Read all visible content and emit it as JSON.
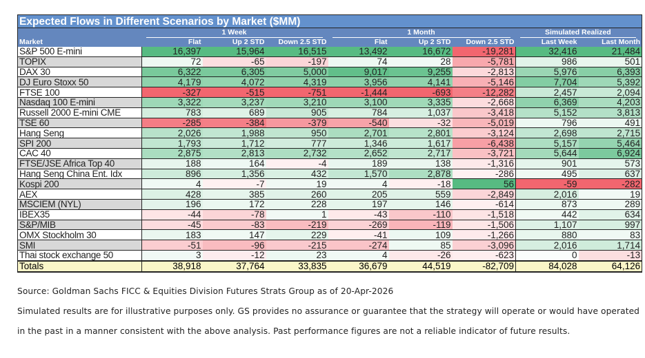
{
  "title": "Expected Flows in Different Scenarios by Market ($MM)",
  "groups": {
    "week": "1 Week",
    "month": "1 Month",
    "realized": "Simulated Realized"
  },
  "columns": [
    "Market",
    "Flat",
    "Up 2 STD",
    "Down 2.5 STD",
    "Flat",
    "Up 2 STD",
    "Down 2.5 STD",
    "Last Week",
    "Last Month"
  ],
  "colors": {
    "title_bg": "#6391cd",
    "header_bg": "#6487be",
    "positive": "#57bb82",
    "negative": "#f2666f",
    "totals_bg": "#faf6c8",
    "zebra": "#d8d8d8"
  },
  "rows": [
    [
      "S&P 500 E-mini",
      "16,397",
      "15,964",
      "16,515",
      "13,492",
      "16,672",
      "-19,281",
      "32,416",
      "21,484"
    ],
    [
      "TOPIX",
      "72",
      "-65",
      "-197",
      "74",
      "28",
      "-5,781",
      "986",
      "501"
    ],
    [
      "DAX 30",
      "6,322",
      "6,305",
      "5,000",
      "9,017",
      "9,255",
      "-2,813",
      "5,976",
      "6,393"
    ],
    [
      "DJ Euro Stoxx 50",
      "4,179",
      "4,072",
      "4,319",
      "3,956",
      "4,141",
      "-5,146",
      "7,704",
      "5,392"
    ],
    [
      "FTSE 100",
      "-327",
      "-515",
      "-751",
      "-1,444",
      "-693",
      "-12,282",
      "2,457",
      "2,094"
    ],
    [
      "Nasdaq 100 E-mini",
      "3,322",
      "3,237",
      "3,210",
      "3,100",
      "3,335",
      "-2,668",
      "6,369",
      "4,203"
    ],
    [
      "Russell 2000 E-mini CME",
      "783",
      "689",
      "905",
      "784",
      "1,037",
      "-3,418",
      "5,152",
      "3,813"
    ],
    [
      "TSE 60",
      "-285",
      "-384",
      "-379",
      "-540",
      "-32",
      "-5,019",
      "796",
      "491"
    ],
    [
      "Hang Seng",
      "2,026",
      "1,988",
      "950",
      "2,701",
      "2,801",
      "-3,124",
      "2,698",
      "2,715"
    ],
    [
      "SPI 200",
      "1,793",
      "1,712",
      "777",
      "1,346",
      "1,617",
      "-6,438",
      "5,157",
      "5,464"
    ],
    [
      "CAC 40",
      "2,875",
      "2,813",
      "2,732",
      "2,652",
      "2,717",
      "-3,721",
      "5,644",
      "6,924"
    ],
    [
      "FTSE/JSE Africa Top 40",
      "188",
      "164",
      "-4",
      "189",
      "138",
      "-1,316",
      "901",
      "573"
    ],
    [
      "Hang Seng China Ent. Idx",
      "896",
      "1,356",
      "432",
      "1,570",
      "2,878",
      "-286",
      "495",
      "637"
    ],
    [
      "Kospi 200",
      "4",
      "-7",
      "19",
      "4",
      "-18",
      "56",
      "-59",
      "-282"
    ],
    [
      "AEX",
      "428",
      "385",
      "260",
      "205",
      "559",
      "-2,849",
      "2,016",
      "19"
    ],
    [
      "MSCIEM (NYL)",
      "196",
      "172",
      "228",
      "197",
      "146",
      "-614",
      "873",
      "289"
    ],
    [
      "IBEX35",
      "-44",
      "-78",
      "1",
      "-43",
      "-110",
      "-1,518",
      "442",
      "634"
    ],
    [
      "S&P/MIB",
      "-45",
      "-83",
      "-219",
      "-269",
      "-119",
      "-1,506",
      "1,107",
      "997"
    ],
    [
      "OMX Stockholm 30",
      "183",
      "147",
      "229",
      "-41",
      "109",
      "-1,266",
      "880",
      "83"
    ],
    [
      "SMI",
      "-51",
      "-96",
      "-215",
      "-274",
      "85",
      "-3,096",
      "2,016",
      "1,714"
    ],
    [
      "Thai stock exchange 50",
      "3",
      "-12",
      "23",
      "4",
      "-26",
      "-623",
      "0",
      "-13"
    ]
  ],
  "totals": [
    "Totals",
    "38,918",
    "37,764",
    "33,835",
    "36,679",
    "44,519",
    "-82,709",
    "84,028",
    "64,126"
  ],
  "source": "Source: Goldman Sachs FICC & Equities Division Futures Strats Group as of 20-Apr-2026",
  "disclaimer_1": "Simulated results are for illustrative purposes only. GS provides no assurance or guarantee that the strategy will operate or would have operated",
  "disclaimer_2": "in the past in a manner consistent with the above analysis. Past performance figures are not a reliable indicator of future results."
}
